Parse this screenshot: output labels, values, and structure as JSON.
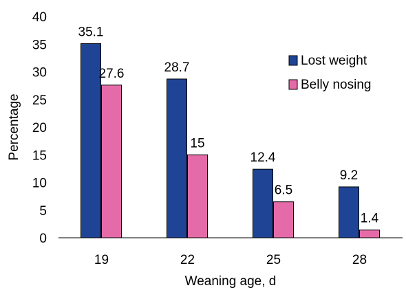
{
  "chart_data": {
    "type": "bar",
    "categories": [
      "19",
      "22",
      "25",
      "28"
    ],
    "series": [
      {
        "name": "Lost weight",
        "values": [
          35.1,
          28.7,
          12.4,
          9.2
        ],
        "labels": [
          "35.1",
          "28.7",
          "12.4",
          "9.2"
        ],
        "color": "#1f4496"
      },
      {
        "name": "Belly nosing",
        "values": [
          27.6,
          15,
          6.5,
          1.4
        ],
        "labels": [
          "27.6",
          "15",
          "6.5",
          "1.4"
        ],
        "color": "#e46ba8"
      }
    ],
    "title": "",
    "xlabel": "Weaning age, d",
    "ylabel": "Percentage",
    "ylim": [
      0,
      40
    ],
    "yticks": [
      "0",
      "5",
      "10",
      "15",
      "20",
      "25",
      "30",
      "35",
      "40"
    ],
    "grid": false,
    "legend_position": "top-right"
  }
}
